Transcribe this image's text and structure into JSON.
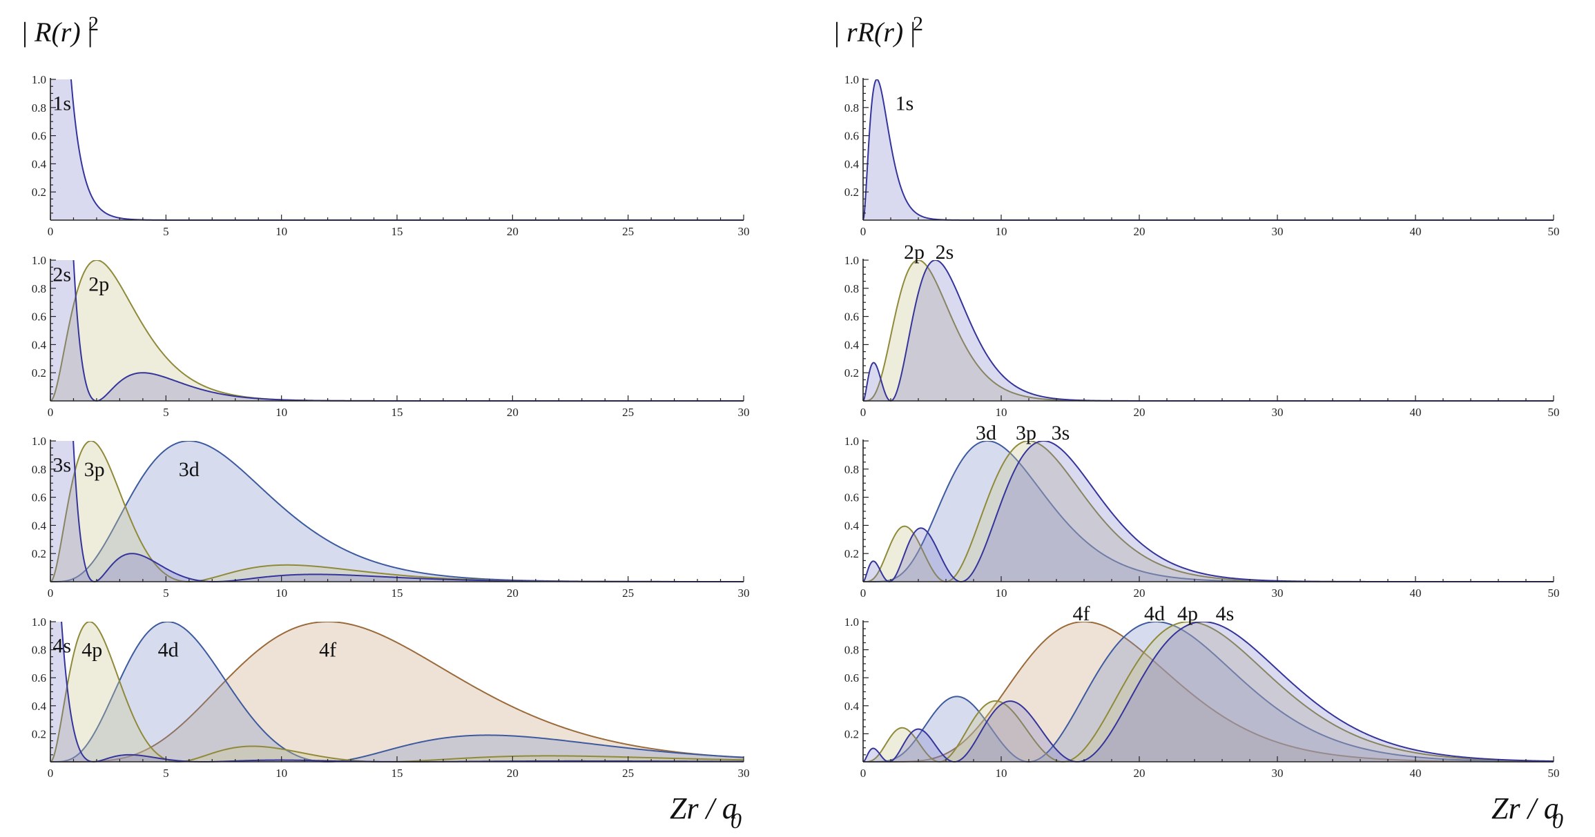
{
  "figure": {
    "left_title": {
      "prefix": "| ",
      "text": "R(r)",
      "suffix": " |",
      "power": "2"
    },
    "right_title": {
      "prefix": "| ",
      "text": "rR(r)",
      "suffix": " |",
      "power": "2"
    },
    "left_xlabel": {
      "text": "Zr / a",
      "sub": "0"
    },
    "right_xlabel": {
      "text": "Zr / a",
      "sub": "0"
    }
  },
  "colors": {
    "s": "#34349a",
    "p": "#8f8a3a",
    "d": "#3d5a9e",
    "f": "#9a6a3a",
    "s_fill": "rgba(120,120,200,0.28)",
    "p_fill": "rgba(205,200,150,0.35)",
    "d_fill": "rgba(120,140,200,0.30)",
    "f_fill": "rgba(200,160,120,0.30)"
  },
  "chart_data": [
    {
      "type": "area",
      "panel": "left",
      "row": 1,
      "quantity": "|R(r)|^2",
      "xlabel": "Zr / a0",
      "xlim": [
        0,
        30
      ],
      "ylim": [
        0,
        1.0
      ],
      "xticks": [
        0,
        5,
        10,
        15,
        20,
        25,
        30
      ],
      "yticks": [
        0.2,
        0.4,
        0.6,
        0.8,
        1.0
      ],
      "series": [
        {
          "name": "1s",
          "n": 1,
          "l": 0,
          "label": "1s",
          "label_pos": [
            0.5,
            0.83
          ]
        }
      ]
    },
    {
      "type": "area",
      "panel": "left",
      "row": 2,
      "quantity": "|R(r)|^2",
      "xlabel": "Zr / a0",
      "xlim": [
        0,
        30
      ],
      "ylim": [
        0,
        1.0
      ],
      "xticks": [
        0,
        5,
        10,
        15,
        20,
        25,
        30
      ],
      "yticks": [
        0.2,
        0.4,
        0.6,
        0.8,
        1.0
      ],
      "series": [
        {
          "name": "2s",
          "n": 2,
          "l": 0,
          "label": "2s",
          "label_pos": [
            0.5,
            0.9
          ]
        },
        {
          "name": "2p",
          "n": 2,
          "l": 1,
          "label": "2p",
          "label_pos": [
            2.1,
            0.83
          ]
        }
      ]
    },
    {
      "type": "area",
      "panel": "left",
      "row": 3,
      "quantity": "|R(r)|^2",
      "xlabel": "Zr / a0",
      "xlim": [
        0,
        30
      ],
      "ylim": [
        0,
        1.0
      ],
      "xticks": [
        0,
        5,
        10,
        15,
        20,
        25,
        30
      ],
      "yticks": [
        0.2,
        0.4,
        0.6,
        0.8,
        1.0
      ],
      "series": [
        {
          "name": "3s",
          "n": 3,
          "l": 0,
          "label": "3s",
          "label_pos": [
            0.5,
            0.83
          ]
        },
        {
          "name": "3p",
          "n": 3,
          "l": 1,
          "label": "3p",
          "label_pos": [
            1.9,
            0.8
          ]
        },
        {
          "name": "3d",
          "n": 3,
          "l": 2,
          "label": "3d",
          "label_pos": [
            6.0,
            0.8
          ]
        }
      ]
    },
    {
      "type": "area",
      "panel": "left",
      "row": 4,
      "quantity": "|R(r)|^2",
      "xlabel": "Zr / a0",
      "xlim": [
        0,
        30
      ],
      "ylim": [
        0,
        1.0
      ],
      "xticks": [
        0,
        5,
        10,
        15,
        20,
        25,
        30
      ],
      "yticks": [
        0.2,
        0.4,
        0.6,
        0.8,
        1.0
      ],
      "series": [
        {
          "name": "4s",
          "n": 4,
          "l": 0,
          "label": "4s",
          "label_pos": [
            0.5,
            0.83
          ]
        },
        {
          "name": "4p",
          "n": 4,
          "l": 1,
          "label": "4p",
          "label_pos": [
            1.8,
            0.8
          ]
        },
        {
          "name": "4d",
          "n": 4,
          "l": 2,
          "label": "4d",
          "label_pos": [
            5.1,
            0.8
          ]
        },
        {
          "name": "4f",
          "n": 4,
          "l": 3,
          "label": "4f",
          "label_pos": [
            12.0,
            0.8
          ]
        }
      ]
    },
    {
      "type": "area",
      "panel": "right",
      "row": 1,
      "quantity": "|rR(r)|^2",
      "xlabel": "Zr / a0",
      "xlim": [
        0,
        50
      ],
      "ylim": [
        0,
        1.0
      ],
      "xticks": [
        0,
        10,
        20,
        30,
        40,
        50
      ],
      "yticks": [
        0.2,
        0.4,
        0.6,
        0.8,
        1.0
      ],
      "series": [
        {
          "name": "1s",
          "n": 1,
          "l": 0,
          "label": "1s",
          "label_pos": [
            3.0,
            0.83
          ]
        }
      ]
    },
    {
      "type": "area",
      "panel": "right",
      "row": 2,
      "quantity": "|rR(r)|^2",
      "xlabel": "Zr / a0",
      "xlim": [
        0,
        50
      ],
      "ylim": [
        0,
        1.0
      ],
      "xticks": [
        0,
        10,
        20,
        30,
        40,
        50
      ],
      "yticks": [
        0.2,
        0.4,
        0.6,
        0.8,
        1.0
      ],
      "series": [
        {
          "name": "2s",
          "n": 2,
          "l": 0,
          "label": "2s",
          "label_pos": [
            5.9,
            1.06
          ]
        },
        {
          "name": "2p",
          "n": 2,
          "l": 1,
          "label": "2p",
          "label_pos": [
            3.7,
            1.06
          ]
        }
      ]
    },
    {
      "type": "area",
      "panel": "right",
      "row": 3,
      "quantity": "|rR(r)|^2",
      "xlabel": "Zr / a0",
      "xlim": [
        0,
        50
      ],
      "ylim": [
        0,
        1.0
      ],
      "xticks": [
        0,
        10,
        20,
        30,
        40,
        50
      ],
      "yticks": [
        0.2,
        0.4,
        0.6,
        0.8,
        1.0
      ],
      "series": [
        {
          "name": "3s",
          "n": 3,
          "l": 0,
          "label": "3s",
          "label_pos": [
            14.3,
            1.06
          ]
        },
        {
          "name": "3p",
          "n": 3,
          "l": 1,
          "label": "3p",
          "label_pos": [
            11.8,
            1.06
          ]
        },
        {
          "name": "3d",
          "n": 3,
          "l": 2,
          "label": "3d",
          "label_pos": [
            8.9,
            1.06
          ]
        }
      ]
    },
    {
      "type": "area",
      "panel": "right",
      "row": 4,
      "quantity": "|rR(r)|^2",
      "xlabel": "Zr / a0",
      "xlim": [
        0,
        50
      ],
      "ylim": [
        0,
        1.0
      ],
      "xticks": [
        0,
        10,
        20,
        30,
        40,
        50
      ],
      "yticks": [
        0.2,
        0.4,
        0.6,
        0.8,
        1.0
      ],
      "series": [
        {
          "name": "4s",
          "n": 4,
          "l": 0,
          "label": "4s",
          "label_pos": [
            26.2,
            1.06
          ]
        },
        {
          "name": "4p",
          "n": 4,
          "l": 1,
          "label": "4p",
          "label_pos": [
            23.5,
            1.06
          ]
        },
        {
          "name": "4d",
          "n": 4,
          "l": 2,
          "label": "4d",
          "label_pos": [
            21.1,
            1.06
          ]
        },
        {
          "name": "4f",
          "n": 4,
          "l": 3,
          "label": "4f",
          "label_pos": [
            15.8,
            1.06
          ]
        }
      ]
    }
  ]
}
